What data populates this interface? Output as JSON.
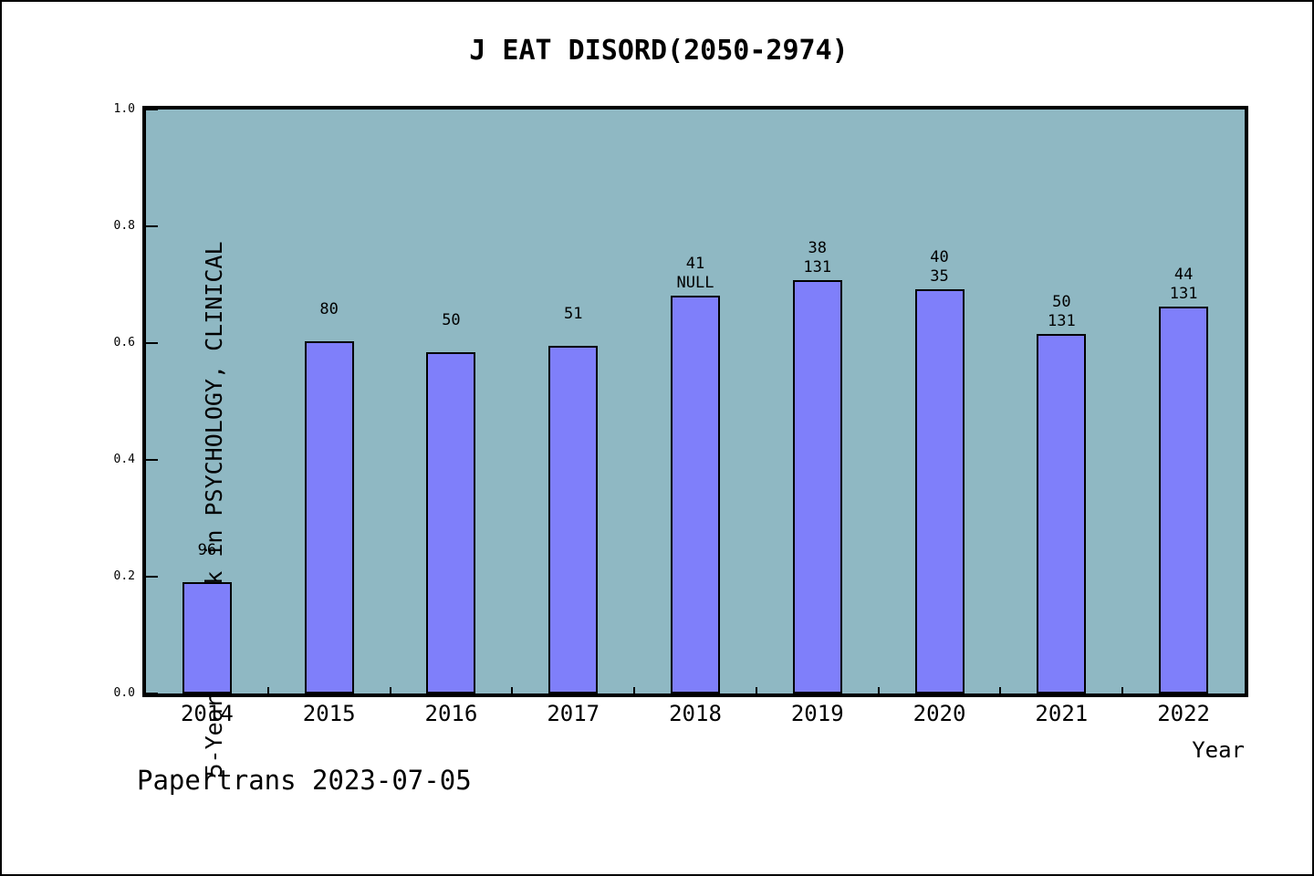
{
  "title": "J EAT DISORD(2050-2974)",
  "footer": "Papertrans 2023-07-05",
  "chart_data": {
    "type": "bar",
    "title": "J EAT DISORD(2050-2974)",
    "xlabel": "Year",
    "ylabel": "5-Year JIF Rank in PSYCHOLOGY, CLINICAL",
    "categories": [
      "2014",
      "2015",
      "2016",
      "2017",
      "2018",
      "2019",
      "2020",
      "2021",
      "2022"
    ],
    "values": [
      0.19,
      0.603,
      0.585,
      0.595,
      0.682,
      0.708,
      0.692,
      0.616,
      0.662
    ],
    "bar_labels": [
      "96",
      "80",
      "50",
      "51",
      "41\nNULL",
      "38\n131",
      "40\n35",
      "50\n131",
      "44\n131"
    ],
    "ylim": [
      0.0,
      1.0
    ],
    "ytick_labels": [
      "0.0",
      "0.2",
      "0.4",
      "0.6",
      "0.8",
      "1.0"
    ],
    "grid": false,
    "legend": null,
    "annotation": "Papertrans 2023-07-05",
    "colors": {
      "bar_fill": "#7F7FFA",
      "bar_border": "#000000",
      "plot_background": "#8FB8C3",
      "frame": "#000000",
      "page_background": "#FFFFFF",
      "text": "#000000"
    }
  }
}
